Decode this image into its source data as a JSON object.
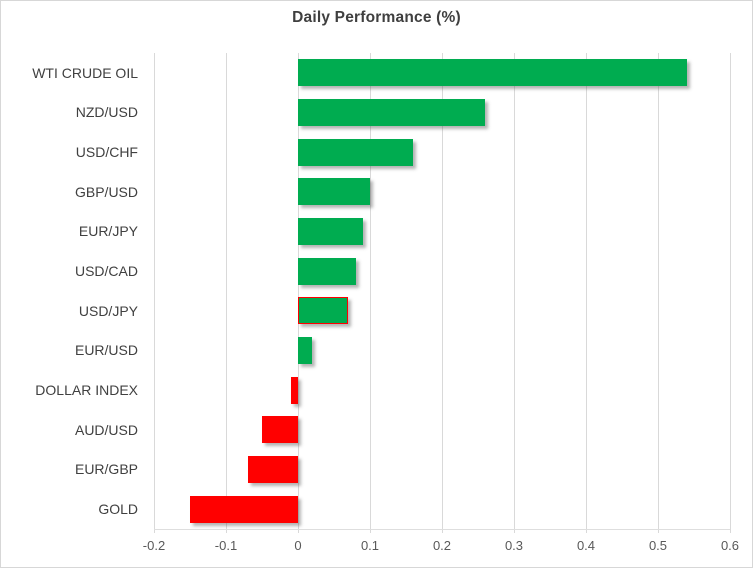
{
  "chart_data": {
    "type": "bar",
    "orientation": "horizontal",
    "title": "Daily Performance (%)",
    "categories": [
      "WTI CRUDE OIL",
      "NZD/USD",
      "USD/CHF",
      "GBP/USD",
      "EUR/JPY",
      "USD/CAD",
      "USD/JPY",
      "EUR/USD",
      "DOLLAR INDEX",
      "AUD/USD",
      "EUR/GBP",
      "GOLD"
    ],
    "values": [
      0.54,
      0.26,
      0.16,
      0.1,
      0.09,
      0.08,
      0.07,
      0.02,
      -0.01,
      -0.05,
      -0.07,
      -0.15
    ],
    "xlim": [
      -0.2,
      0.6
    ],
    "xticks": [
      -0.2,
      -0.1,
      0,
      0.1,
      0.2,
      0.3,
      0.4,
      0.5,
      0.6
    ],
    "xtick_labels": [
      "-0.2",
      "-0.1",
      "0",
      "0.1",
      "0.2",
      "0.3",
      "0.4",
      "0.5",
      "0.6"
    ],
    "grid": true,
    "legend": false,
    "highlight": {
      "category": "USD/JPY",
      "border_color": "#FF0000"
    },
    "colors": {
      "positive": "#00AC50",
      "negative": "#FF0000",
      "gridline": "#D9D9D9",
      "title_text": "#3F3F3F",
      "category_text": "#404040",
      "tick_text": "#595959"
    }
  }
}
